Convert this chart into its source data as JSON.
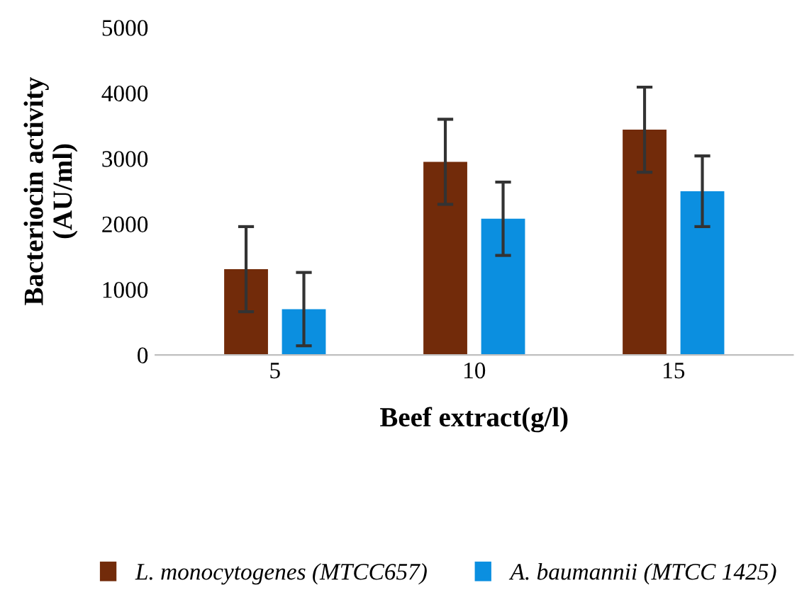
{
  "chart_data": {
    "type": "bar",
    "xlabel": "Beef extract(g/l)",
    "ylabel": "Bacteriocin activity\n(AU/ml)",
    "categories": [
      "5",
      "10",
      "15"
    ],
    "series": [
      {
        "name": "L. monocytogenes (MTCC657)",
        "color": "#722b0a",
        "values": [
          1310,
          2950,
          3440
        ],
        "errors": [
          650,
          650,
          650
        ]
      },
      {
        "name": "A. baumannii (MTCC 1425)",
        "color": "#0b8fe0",
        "values": [
          700,
          2080,
          2500
        ],
        "errors": [
          560,
          560,
          540
        ]
      }
    ],
    "ylim": [
      0,
      5000
    ],
    "yticks": [
      0,
      1000,
      2000,
      3000,
      4000,
      5000
    ],
    "grid": false,
    "legend": "bottom"
  }
}
